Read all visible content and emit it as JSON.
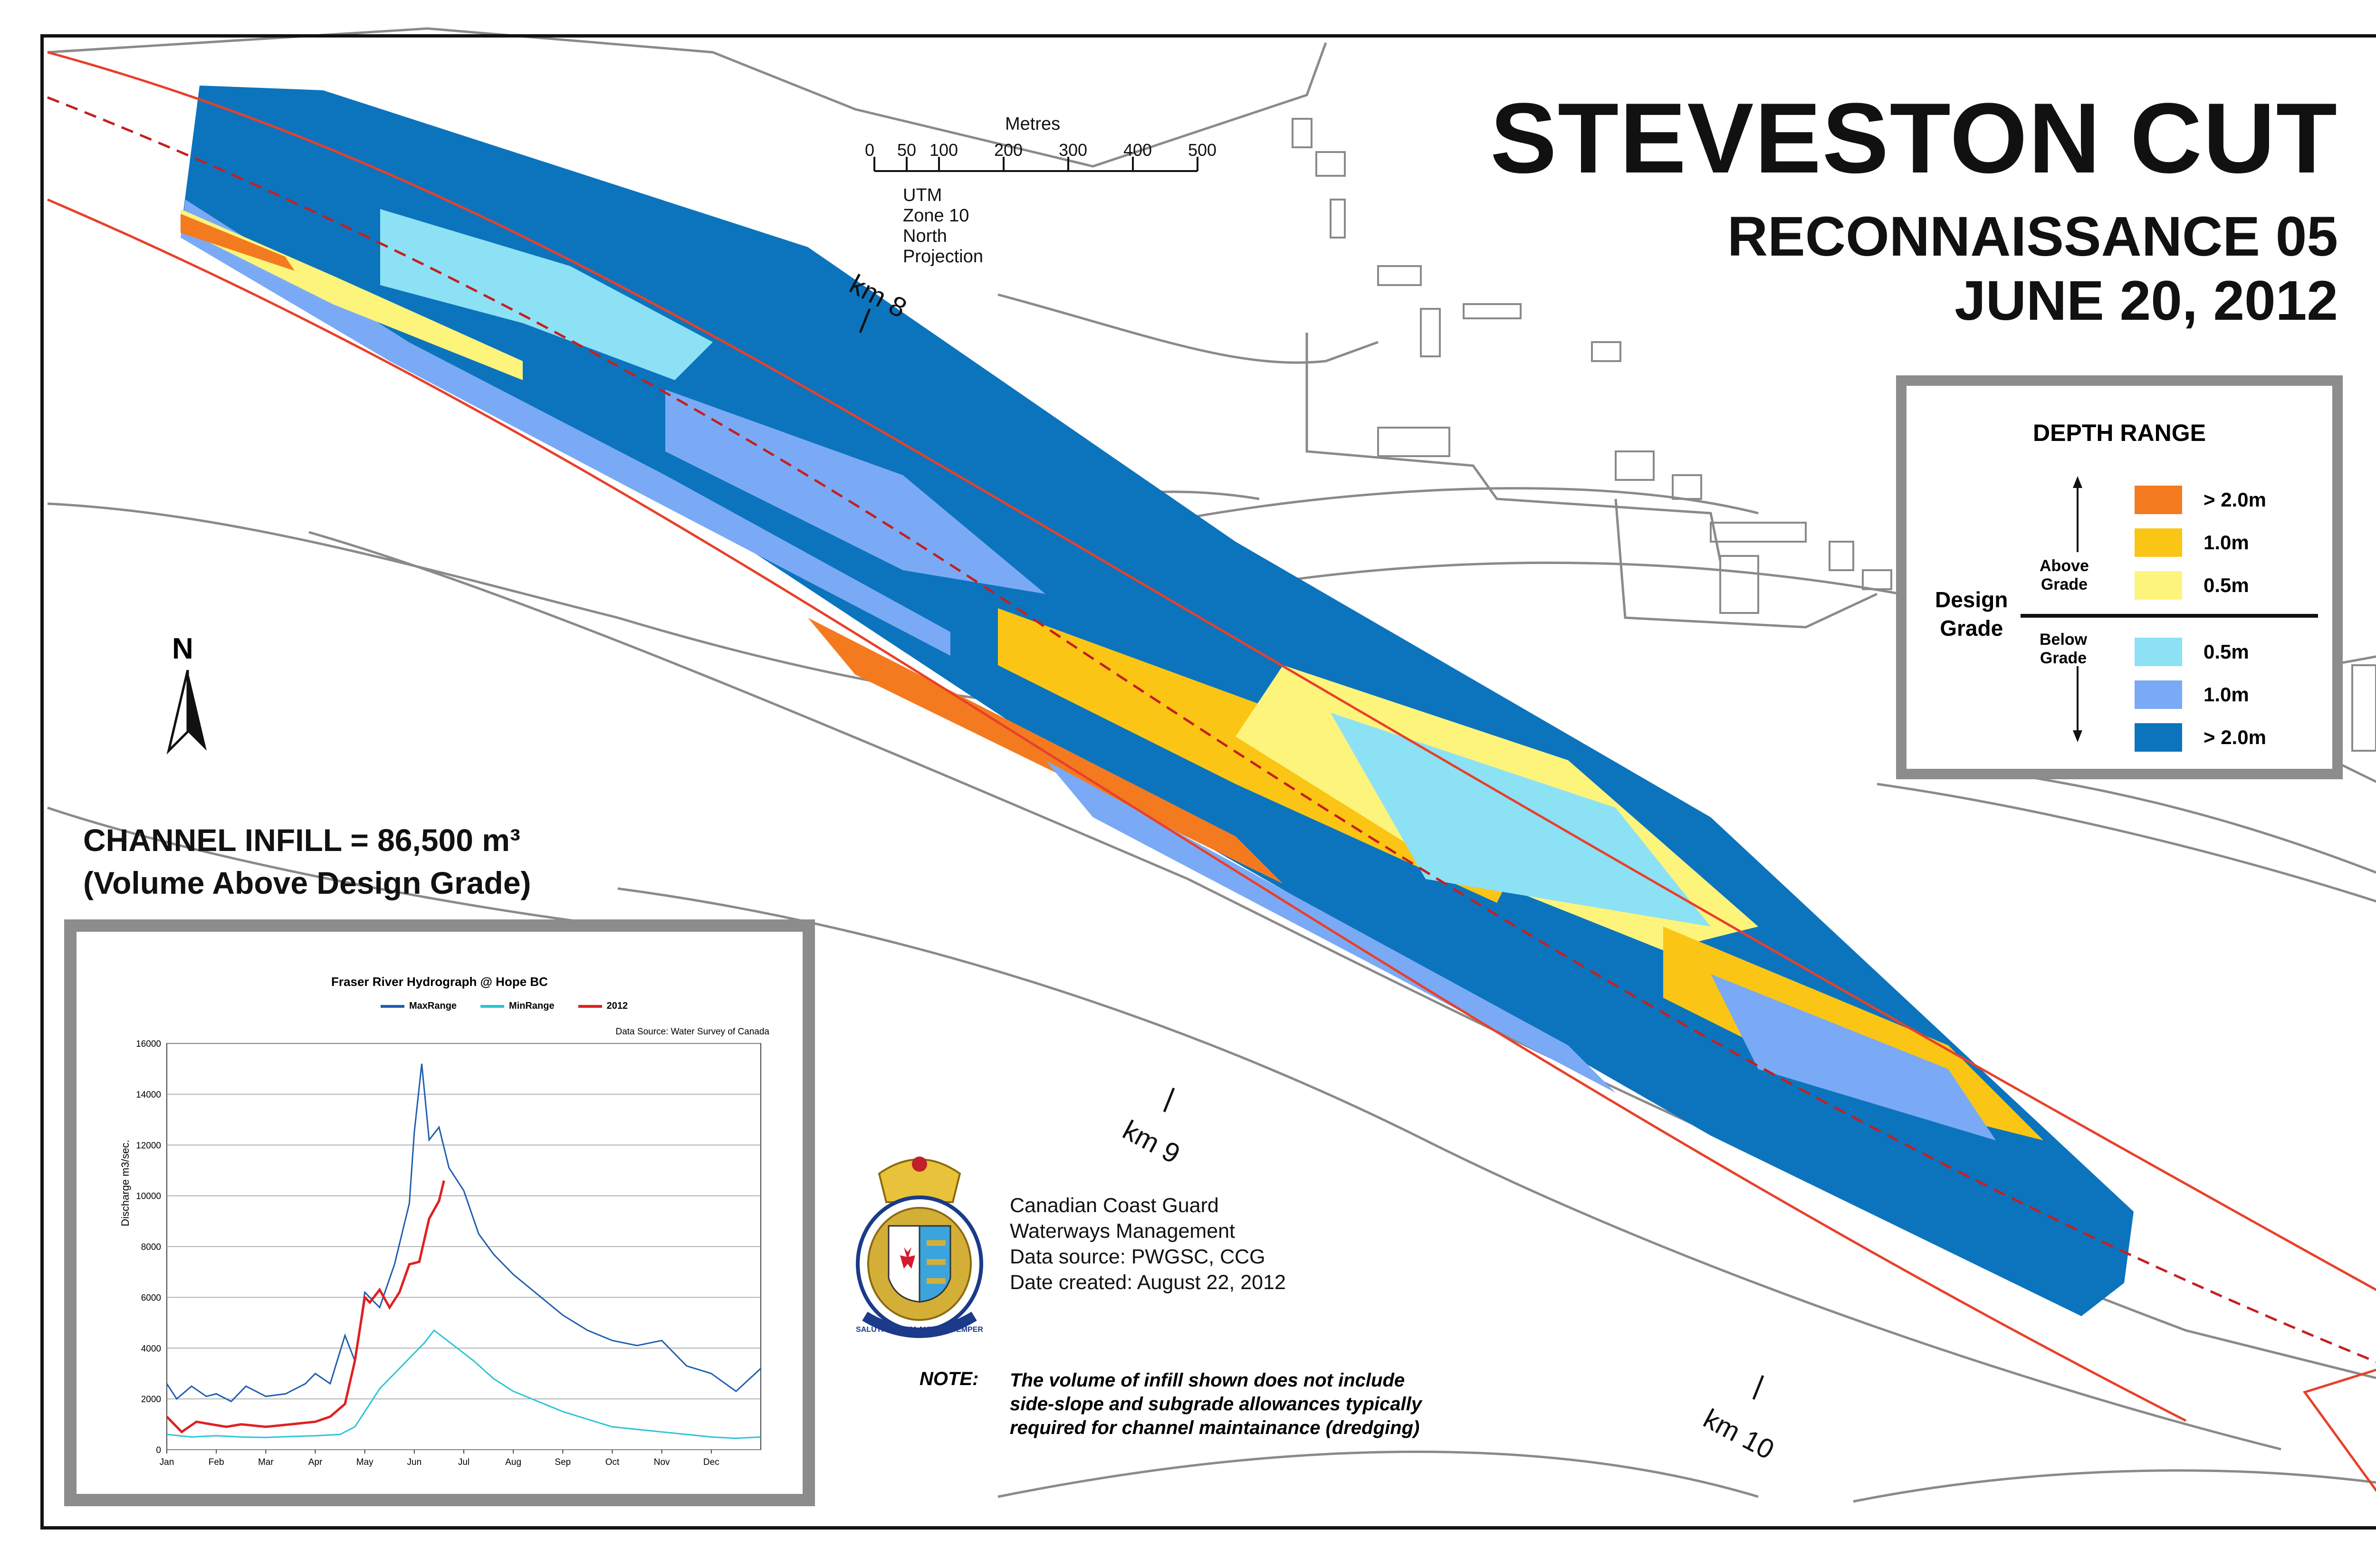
{
  "title": {
    "main": "STEVESTON CUT",
    "sub": "RECONNAISSANCE 05",
    "date": "JUNE 20, 2012"
  },
  "scale_bar": {
    "unit": "Metres",
    "ticks": [
      "0",
      "50",
      "100",
      "200",
      "300",
      "400",
      "500"
    ],
    "projection": "UTM Zone 10 North Projection"
  },
  "km_markers": [
    "km 8",
    "km 9",
    "km 10"
  ],
  "north_arrow": {
    "label": "N",
    "icon": "north-arrow-icon"
  },
  "legend": {
    "title": "DEPTH RANGE",
    "design_grade_label": [
      "Design",
      "Grade"
    ],
    "above_label": [
      "Above",
      "Grade"
    ],
    "below_label": [
      "Below",
      "Grade"
    ],
    "above": [
      {
        "label": "> 2.0m",
        "color": "#f47a20"
      },
      {
        "label": "1.0m",
        "color": "#fbc515"
      },
      {
        "label": "0.5m",
        "color": "#fdf47c"
      }
    ],
    "below": [
      {
        "label": "0.5m",
        "color": "#8ce1f5"
      },
      {
        "label": "1.0m",
        "color": "#7aaaf5"
      },
      {
        "label": "> 2.0m",
        "color": "#0c74bd"
      }
    ]
  },
  "infill": {
    "line1": "CHANNEL INFILL = 86,500 m³",
    "line2": "(Volume Above Design Grade)"
  },
  "credits": {
    "lines": [
      "Canadian Coast Guard",
      "Waterways Management",
      "Data source: PWGSC, CCG",
      "Date created: August 22, 2012"
    ],
    "crest_motto": "SALUTI PRIMUM AUXILIO SEMPER",
    "crest_icon": "coast-guard-crest-icon"
  },
  "note": {
    "label": "NOTE:",
    "text": "The volume of infill shown does not include side-slope and subgrade allowances typically required for channel maintainance (dredging)"
  },
  "chart_data": {
    "type": "line",
    "title": "Fraser River Hydrograph @ Hope BC",
    "source": "Data Source:  Water Survey of Canada",
    "ylabel": "Discharge m3/sec.",
    "xlabel": "",
    "ylim": [
      0,
      16000
    ],
    "yticks": [
      "0",
      "2000",
      "4000",
      "6000",
      "8000",
      "10000",
      "12000",
      "14000",
      "16000"
    ],
    "xticks": [
      "Jan",
      "Feb",
      "Mar",
      "Apr",
      "May",
      "Jun",
      "Jul",
      "Aug",
      "Sep",
      "Oct",
      "Nov",
      "Dec"
    ],
    "x_unit": "month (0 = Jan 1, 12 = Dec 31)",
    "series": [
      {
        "name": "MaxRange",
        "color": "#1f5fb0",
        "x": [
          0,
          0.2,
          0.5,
          0.8,
          1.0,
          1.3,
          1.6,
          2.0,
          2.4,
          2.8,
          3.0,
          3.3,
          3.6,
          3.8,
          4.0,
          4.3,
          4.6,
          4.9,
          5.0,
          5.15,
          5.3,
          5.5,
          5.7,
          6.0,
          6.3,
          6.6,
          7.0,
          7.5,
          8.0,
          8.5,
          9.0,
          9.5,
          10.0,
          10.5,
          11.0,
          11.5,
          12.0
        ],
        "values": [
          2600,
          2000,
          2500,
          2100,
          2200,
          1900,
          2500,
          2100,
          2200,
          2600,
          3000,
          2600,
          4500,
          3500,
          6200,
          5600,
          7300,
          9700,
          12500,
          15200,
          12200,
          12700,
          11100,
          10200,
          8500,
          7700,
          6900,
          6100,
          5300,
          4700,
          4300,
          4100,
          4300,
          3300,
          3000,
          2300,
          3200
        ]
      },
      {
        "name": "MinRange",
        "color": "#2cc4d6",
        "x": [
          0,
          0.5,
          1.0,
          1.5,
          2.0,
          2.5,
          3.0,
          3.5,
          3.8,
          4.0,
          4.3,
          4.6,
          4.9,
          5.2,
          5.4,
          5.6,
          5.8,
          6.2,
          6.6,
          7.0,
          7.5,
          8.0,
          8.5,
          9.0,
          9.5,
          10.0,
          10.5,
          11.0,
          11.5,
          12.0
        ],
        "values": [
          600,
          500,
          550,
          500,
          480,
          520,
          550,
          600,
          900,
          1500,
          2400,
          3000,
          3600,
          4200,
          4700,
          4400,
          4100,
          3500,
          2800,
          2300,
          1900,
          1500,
          1200,
          900,
          800,
          700,
          600,
          500,
          450,
          500
        ]
      },
      {
        "name": "2012",
        "color": "#e02020",
        "x": [
          0,
          0.3,
          0.6,
          0.9,
          1.2,
          1.5,
          2.0,
          2.5,
          3.0,
          3.3,
          3.6,
          3.8,
          4.0,
          4.1,
          4.3,
          4.5,
          4.7,
          4.9,
          5.1,
          5.3,
          5.5,
          5.6
        ],
        "values": [
          1300,
          700,
          1100,
          1000,
          900,
          1000,
          900,
          1000,
          1100,
          1300,
          1800,
          3500,
          6000,
          5800,
          6300,
          5600,
          6200,
          7300,
          7400,
          9100,
          9800,
          10600
        ]
      }
    ]
  }
}
